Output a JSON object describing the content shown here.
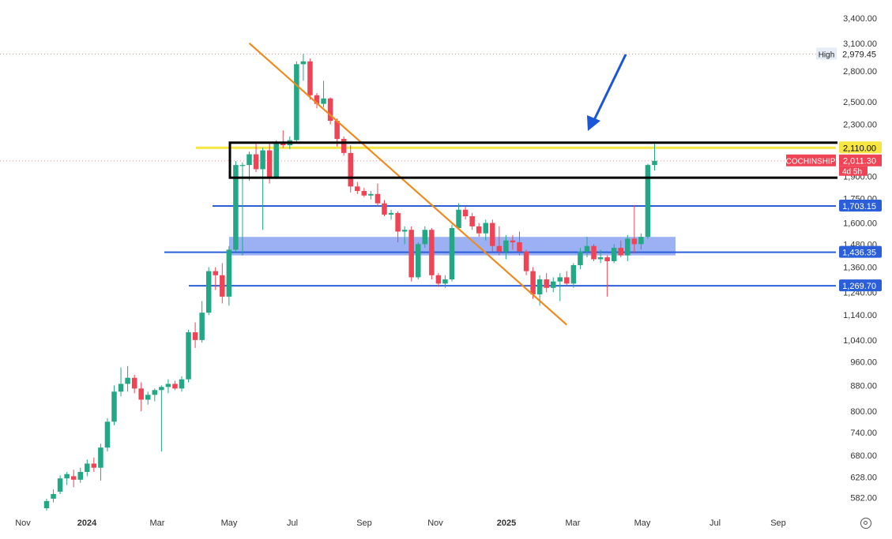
{
  "chart_data": {
    "type": "candlestick",
    "symbol": "COCHINSHIP",
    "scale": "log",
    "ylim": [
      560,
      3500
    ],
    "y_ticks": [
      "3,400.00",
      "3,100.00",
      "2,800.00",
      "2,500.00",
      "2,300.00",
      "2,110.00",
      "2,011.30",
      "1,900.00",
      "1,750.00",
      "1,703.15",
      "1,600.00",
      "1,480.00",
      "1,436.35",
      "1,360.00",
      "1,269.70",
      "1,240.00",
      "1,140.00",
      "1,040.00",
      "960.00",
      "880.00",
      "800.00",
      "740.00",
      "680.00",
      "628.00",
      "582.00"
    ],
    "x_labels": [
      "Nov",
      "2024",
      "Mar",
      "May",
      "Jul",
      "Sep",
      "Nov",
      "2025",
      "Mar",
      "May",
      "Jul",
      "Sep"
    ],
    "last_price": "2,011.30",
    "last_price_sub": "4d 5h",
    "high_label": "High",
    "high_value": "2,979.45",
    "levels": [
      {
        "value": 2110.0,
        "label": "2,110.00",
        "color": "#f5e642",
        "kind": "resistance"
      },
      {
        "value": 1703.15,
        "label": "1,703.15",
        "color": "#2b5fd9",
        "kind": "support"
      },
      {
        "value": 1436.35,
        "label": "1,436.35",
        "color": "#2b5fd9",
        "kind": "support"
      },
      {
        "value": 1269.7,
        "label": "1,269.70",
        "color": "#2b5fd9",
        "kind": "support"
      }
    ],
    "zone": {
      "low": 1420,
      "high": 1520,
      "color": "#7b95f0"
    },
    "box": {
      "low": 1890,
      "high": 2150
    },
    "trendline": {
      "start": {
        "index": 30,
        "value": 3100
      },
      "end": {
        "index": 77,
        "value": 1100
      },
      "color": "#ef8a1d"
    },
    "arrow_color": "#1a56d6",
    "up_color": "#22a884",
    "down_color": "#ef4456",
    "candles": [
      {
        "o": 560,
        "h": 580,
        "l": 555,
        "c": 575
      },
      {
        "o": 580,
        "h": 600,
        "l": 572,
        "c": 590
      },
      {
        "o": 595,
        "h": 632,
        "l": 590,
        "c": 625
      },
      {
        "o": 625,
        "h": 640,
        "l": 610,
        "c": 635
      },
      {
        "o": 630,
        "h": 645,
        "l": 605,
        "c": 622
      },
      {
        "o": 622,
        "h": 650,
        "l": 615,
        "c": 640
      },
      {
        "o": 640,
        "h": 670,
        "l": 630,
        "c": 660
      },
      {
        "o": 660,
        "h": 675,
        "l": 640,
        "c": 650
      },
      {
        "o": 650,
        "h": 710,
        "l": 620,
        "c": 700
      },
      {
        "o": 700,
        "h": 780,
        "l": 690,
        "c": 770
      },
      {
        "o": 770,
        "h": 880,
        "l": 760,
        "c": 860
      },
      {
        "o": 860,
        "h": 940,
        "l": 845,
        "c": 885
      },
      {
        "o": 885,
        "h": 945,
        "l": 860,
        "c": 905
      },
      {
        "o": 905,
        "h": 915,
        "l": 855,
        "c": 870
      },
      {
        "o": 870,
        "h": 890,
        "l": 800,
        "c": 835
      },
      {
        "o": 835,
        "h": 860,
        "l": 820,
        "c": 850
      },
      {
        "o": 850,
        "h": 870,
        "l": 830,
        "c": 865
      },
      {
        "o": 865,
        "h": 880,
        "l": 690,
        "c": 875
      },
      {
        "o": 875,
        "h": 900,
        "l": 855,
        "c": 885
      },
      {
        "o": 885,
        "h": 895,
        "l": 865,
        "c": 870
      },
      {
        "o": 870,
        "h": 910,
        "l": 860,
        "c": 900
      },
      {
        "o": 900,
        "h": 1080,
        "l": 890,
        "c": 1070
      },
      {
        "o": 1070,
        "h": 1110,
        "l": 1010,
        "c": 1040
      },
      {
        "o": 1040,
        "h": 1200,
        "l": 1030,
        "c": 1150
      },
      {
        "o": 1150,
        "h": 1360,
        "l": 1140,
        "c": 1340
      },
      {
        "o": 1340,
        "h": 1360,
        "l": 1250,
        "c": 1320
      },
      {
        "o": 1320,
        "h": 1380,
        "l": 1190,
        "c": 1220
      },
      {
        "o": 1220,
        "h": 1470,
        "l": 1180,
        "c": 1450
      },
      {
        "o": 1450,
        "h": 2010,
        "l": 1440,
        "c": 1980
      },
      {
        "o": 1980,
        "h": 2000,
        "l": 1420,
        "c": 1980
      },
      {
        "o": 1980,
        "h": 2080,
        "l": 1870,
        "c": 2060
      },
      {
        "o": 2060,
        "h": 2140,
        "l": 1930,
        "c": 1950
      },
      {
        "o": 1950,
        "h": 2110,
        "l": 1560,
        "c": 2090
      },
      {
        "o": 2090,
        "h": 2150,
        "l": 1850,
        "c": 1890
      },
      {
        "o": 1890,
        "h": 2170,
        "l": 1880,
        "c": 2150
      },
      {
        "o": 2150,
        "h": 2250,
        "l": 2110,
        "c": 2130
      },
      {
        "o": 2130,
        "h": 2200,
        "l": 2100,
        "c": 2170
      },
      {
        "o": 2170,
        "h": 2900,
        "l": 2150,
        "c": 2870
      },
      {
        "o": 2870,
        "h": 2979,
        "l": 2700,
        "c": 2900
      },
      {
        "o": 2900,
        "h": 2930,
        "l": 2520,
        "c": 2560
      },
      {
        "o": 2560,
        "h": 2580,
        "l": 2440,
        "c": 2480
      },
      {
        "o": 2480,
        "h": 2700,
        "l": 2450,
        "c": 2530
      },
      {
        "o": 2530,
        "h": 2540,
        "l": 2300,
        "c": 2330
      },
      {
        "o": 2330,
        "h": 2350,
        "l": 2120,
        "c": 2180
      },
      {
        "o": 2180,
        "h": 2200,
        "l": 2050,
        "c": 2070
      },
      {
        "o": 2070,
        "h": 2130,
        "l": 1790,
        "c": 1830
      },
      {
        "o": 1830,
        "h": 1860,
        "l": 1780,
        "c": 1800
      },
      {
        "o": 1800,
        "h": 1820,
        "l": 1760,
        "c": 1770
      },
      {
        "o": 1770,
        "h": 1800,
        "l": 1745,
        "c": 1780
      },
      {
        "o": 1780,
        "h": 1850,
        "l": 1700,
        "c": 1720
      },
      {
        "o": 1720,
        "h": 1740,
        "l": 1640,
        "c": 1650
      },
      {
        "o": 1650,
        "h": 1680,
        "l": 1620,
        "c": 1660
      },
      {
        "o": 1660,
        "h": 1670,
        "l": 1490,
        "c": 1550
      },
      {
        "o": 1550,
        "h": 1580,
        "l": 1480,
        "c": 1560
      },
      {
        "o": 1560,
        "h": 1580,
        "l": 1290,
        "c": 1310
      },
      {
        "o": 1310,
        "h": 1490,
        "l": 1300,
        "c": 1480
      },
      {
        "o": 1480,
        "h": 1580,
        "l": 1460,
        "c": 1560
      },
      {
        "o": 1560,
        "h": 1570,
        "l": 1300,
        "c": 1320
      },
      {
        "o": 1320,
        "h": 1330,
        "l": 1265,
        "c": 1280
      },
      {
        "o": 1280,
        "h": 1320,
        "l": 1260,
        "c": 1300
      },
      {
        "o": 1300,
        "h": 1590,
        "l": 1290,
        "c": 1570
      },
      {
        "o": 1570,
        "h": 1720,
        "l": 1560,
        "c": 1680
      },
      {
        "o": 1680,
        "h": 1700,
        "l": 1620,
        "c": 1640
      },
      {
        "o": 1640,
        "h": 1660,
        "l": 1560,
        "c": 1580
      },
      {
        "o": 1580,
        "h": 1600,
        "l": 1520,
        "c": 1540
      },
      {
        "o": 1540,
        "h": 1620,
        "l": 1500,
        "c": 1600
      },
      {
        "o": 1600,
        "h": 1620,
        "l": 1440,
        "c": 1470
      },
      {
        "o": 1470,
        "h": 1580,
        "l": 1420,
        "c": 1440
      },
      {
        "o": 1440,
        "h": 1530,
        "l": 1400,
        "c": 1500
      },
      {
        "o": 1500,
        "h": 1530,
        "l": 1450,
        "c": 1490
      },
      {
        "o": 1490,
        "h": 1550,
        "l": 1420,
        "c": 1440
      },
      {
        "o": 1440,
        "h": 1450,
        "l": 1320,
        "c": 1340
      },
      {
        "o": 1340,
        "h": 1360,
        "l": 1210,
        "c": 1230
      },
      {
        "o": 1230,
        "h": 1320,
        "l": 1180,
        "c": 1300
      },
      {
        "o": 1300,
        "h": 1330,
        "l": 1240,
        "c": 1260
      },
      {
        "o": 1260,
        "h": 1310,
        "l": 1240,
        "c": 1290
      },
      {
        "o": 1290,
        "h": 1330,
        "l": 1200,
        "c": 1310
      },
      {
        "o": 1310,
        "h": 1340,
        "l": 1270,
        "c": 1280
      },
      {
        "o": 1280,
        "h": 1380,
        "l": 1260,
        "c": 1370
      },
      {
        "o": 1370,
        "h": 1460,
        "l": 1350,
        "c": 1440
      },
      {
        "o": 1440,
        "h": 1520,
        "l": 1410,
        "c": 1470
      },
      {
        "o": 1470,
        "h": 1480,
        "l": 1390,
        "c": 1400
      },
      {
        "o": 1400,
        "h": 1450,
        "l": 1380,
        "c": 1410
      },
      {
        "o": 1410,
        "h": 1420,
        "l": 1220,
        "c": 1390
      },
      {
        "o": 1390,
        "h": 1480,
        "l": 1380,
        "c": 1460
      },
      {
        "o": 1460,
        "h": 1500,
        "l": 1410,
        "c": 1420
      },
      {
        "o": 1420,
        "h": 1530,
        "l": 1390,
        "c": 1510
      },
      {
        "o": 1510,
        "h": 1710,
        "l": 1430,
        "c": 1480
      },
      {
        "o": 1480,
        "h": 1540,
        "l": 1450,
        "c": 1520
      },
      {
        "o": 1520,
        "h": 1990,
        "l": 1510,
        "c": 1980
      },
      {
        "o": 1980,
        "h": 2140,
        "l": 1940,
        "c": 2011.3
      }
    ]
  }
}
